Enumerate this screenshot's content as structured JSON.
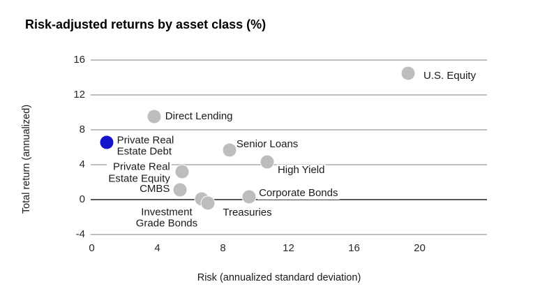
{
  "chart_data": {
    "type": "scatter",
    "title": "Risk-adjusted returns by asset class (%)",
    "xlabel": "Risk (annualized standard deviation)",
    "ylabel": "Total return (annualized)",
    "x_ticks": [
      0,
      4,
      8,
      12,
      16,
      20
    ],
    "y_ticks": [
      16,
      12,
      8,
      4,
      0,
      -4
    ],
    "xlim": [
      0,
      24
    ],
    "ylim": [
      -4,
      16
    ],
    "grid": "horizontal-only",
    "zero_line_emphasized": true,
    "legend": "none",
    "colors": {
      "default_marker": "#bdbdbd",
      "highlight_marker": "#1414cc",
      "grid": "#bfbfbf",
      "zero_line": "#595959",
      "text": "#1a1a1a"
    },
    "points": [
      {
        "name": "U.S. Equity",
        "x": 19.3,
        "y": 14.5,
        "highlight": false,
        "label_lines": [
          "U.S. Equity"
        ],
        "label_anchor": "start",
        "label_align": "left",
        "label_offset": [
          20,
          4
        ]
      },
      {
        "name": "Direct Lending",
        "x": 3.8,
        "y": 9.5,
        "highlight": false,
        "label_lines": [
          "Direct Lending"
        ],
        "label_anchor": "start",
        "label_align": "left",
        "label_offset": [
          14,
          0
        ]
      },
      {
        "name": "Private Real Estate Debt",
        "x": 0.9,
        "y": 6.6,
        "highlight": true,
        "label_lines": [
          "Private Real",
          "Estate Debt"
        ],
        "label_anchor": "start",
        "label_align": "left",
        "label_offset": [
          13,
          6
        ]
      },
      {
        "name": "Senior Loans",
        "x": 8.4,
        "y": 5.7,
        "highlight": false,
        "label_lines": [
          "Senior Loans"
        ],
        "label_anchor": "start",
        "label_align": "left",
        "label_offset": [
          8,
          -8
        ]
      },
      {
        "name": "High Yield",
        "x": 10.7,
        "y": 4.3,
        "highlight": false,
        "label_lines": [
          "High Yield"
        ],
        "label_anchor": "start",
        "label_align": "left",
        "label_offset": [
          13,
          12
        ]
      },
      {
        "name": "Private Real Estate Equity",
        "x": 5.5,
        "y": 3.2,
        "highlight": false,
        "label_lines": [
          "Private Real",
          "Estate Equity"
        ],
        "label_anchor": "end",
        "label_align": "right",
        "label_offset": [
          -15,
          2
        ]
      },
      {
        "name": "CMBS",
        "x": 5.4,
        "y": 1.1,
        "highlight": false,
        "label_lines": [
          "CMBS"
        ],
        "label_anchor": "end",
        "label_align": "right",
        "label_offset": [
          -13,
          -1
        ]
      },
      {
        "name": "Corporate Bonds",
        "x": 9.6,
        "y": 0.3,
        "highlight": false,
        "label_lines": [
          "Corporate Bonds"
        ],
        "label_anchor": "start",
        "label_align": "left",
        "label_offset": [
          12,
          -5
        ]
      },
      {
        "name": "Investment Grade Bonds",
        "x": 6.7,
        "y": 0.1,
        "highlight": false,
        "label_lines": [
          "Investment",
          "Grade Bonds"
        ],
        "label_anchor": "center",
        "label_align": "center",
        "label_offset": [
          -50,
          28
        ]
      },
      {
        "name": "Treasuries",
        "x": 7.1,
        "y": -0.4,
        "highlight": false,
        "label_lines": [
          "Treasuries"
        ],
        "label_anchor": "start",
        "label_align": "left",
        "label_offset": [
          19,
          14
        ]
      }
    ]
  }
}
